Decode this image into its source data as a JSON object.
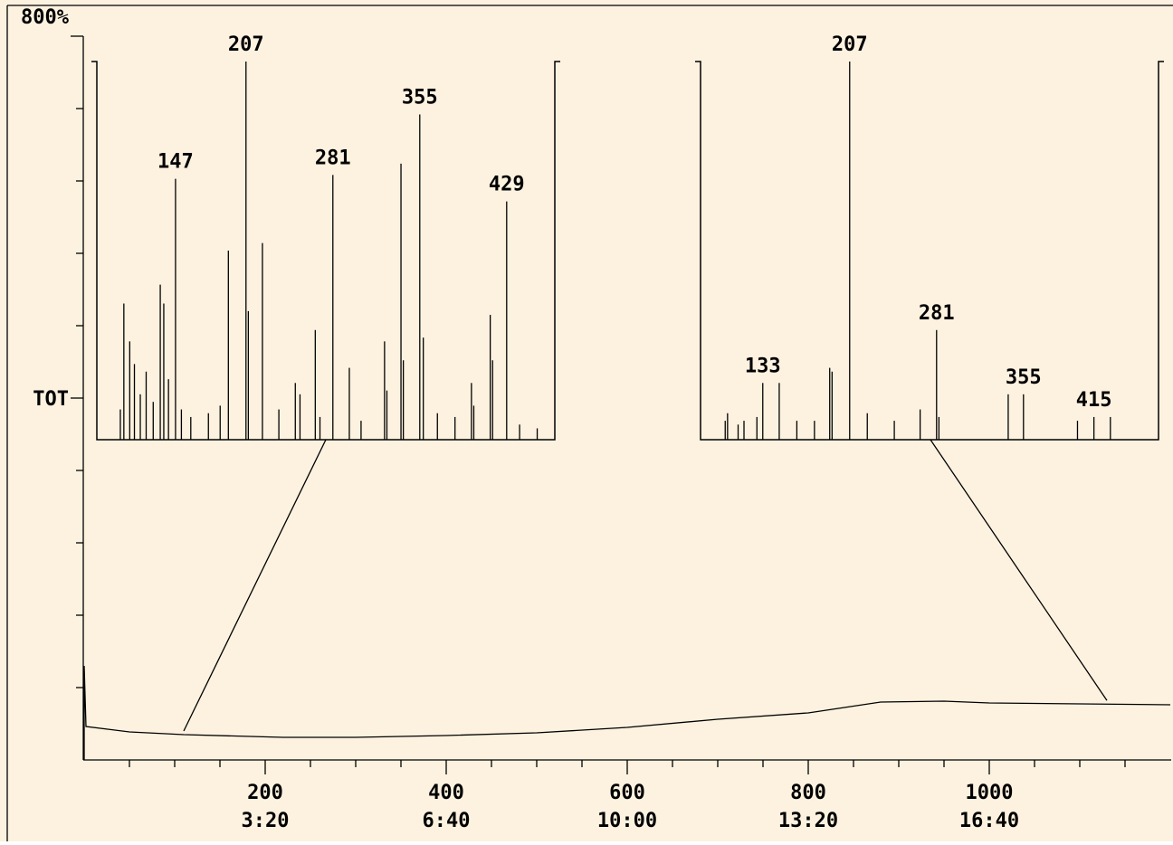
{
  "chart_data": [
    {
      "type": "line",
      "x": [
        0,
        0,
        2,
        50,
        110,
        220,
        300,
        400,
        500,
        600,
        700,
        800,
        880,
        950,
        1000,
        1100,
        1200
      ],
      "values": [
        0,
        104,
        37,
        31,
        28,
        25,
        25,
        27,
        30,
        36,
        45,
        52,
        64,
        65,
        63,
        62,
        61
      ],
      "color": "#000000",
      "xlim": [
        0,
        1200
      ],
      "ylim": [
        0,
        800
      ],
      "xticks": [
        200,
        400,
        600,
        800,
        1000
      ],
      "xtick_time_labels": [
        "3:20",
        "6:40",
        "10:00",
        "13:20",
        "16:40"
      ],
      "xminorticks": [
        50,
        100,
        150,
        250,
        300,
        350,
        450,
        500,
        550,
        650,
        700,
        750,
        850,
        900,
        950,
        1050,
        1100,
        1150
      ],
      "yticks": [
        {
          "value": 800,
          "label": "800%"
        },
        {
          "value": 400,
          "label": "TOT"
        }
      ],
      "yminorticks": [
        80,
        160,
        240,
        320,
        480,
        560,
        640,
        720
      ]
    },
    {
      "type": "spectrum",
      "scan": 110,
      "xlim": [
        80,
        470
      ],
      "ylim": [
        0,
        100
      ],
      "color": "#000000",
      "peaks": {
        "x": [
          147,
          207,
          281,
          355,
          429
        ],
        "values": [
          69,
          100,
          70,
          86,
          63
        ]
      },
      "minor_peaks": {
        "x": [
          100,
          103,
          108,
          112,
          117,
          122,
          128,
          134,
          137,
          141,
          152,
          160,
          175,
          185,
          192,
          209,
          221,
          235,
          249,
          253,
          266,
          270,
          295,
          305,
          325,
          327,
          339,
          341,
          358,
          370,
          385,
          399,
          401,
          415,
          417,
          440,
          455
        ],
        "values": [
          8,
          36,
          26,
          20,
          12,
          18,
          10,
          41,
          36,
          16,
          8,
          6,
          7,
          9,
          50,
          34,
          52,
          8,
          15,
          12,
          29,
          6,
          19,
          5,
          26,
          13,
          73,
          21,
          27,
          7,
          6,
          15,
          9,
          33,
          21,
          4,
          3
        ]
      }
    },
    {
      "type": "spectrum",
      "scan": 1130,
      "xlim": [
        80,
        470
      ],
      "ylim": [
        0,
        100
      ],
      "color": "#000000",
      "peaks": {
        "x": [
          133,
          207,
          281,
          355,
          415
        ],
        "values": [
          15,
          100,
          29,
          12,
          6
        ]
      },
      "minor_peaks": {
        "x": [
          101,
          103,
          112,
          117,
          128,
          147,
          162,
          177,
          190,
          192,
          222,
          245,
          267,
          283,
          342,
          401,
          429
        ],
        "values": [
          5,
          7,
          4,
          5,
          6,
          15,
          5,
          5,
          19,
          18,
          7,
          5,
          8,
          6,
          12,
          5,
          6
        ]
      }
    }
  ]
}
